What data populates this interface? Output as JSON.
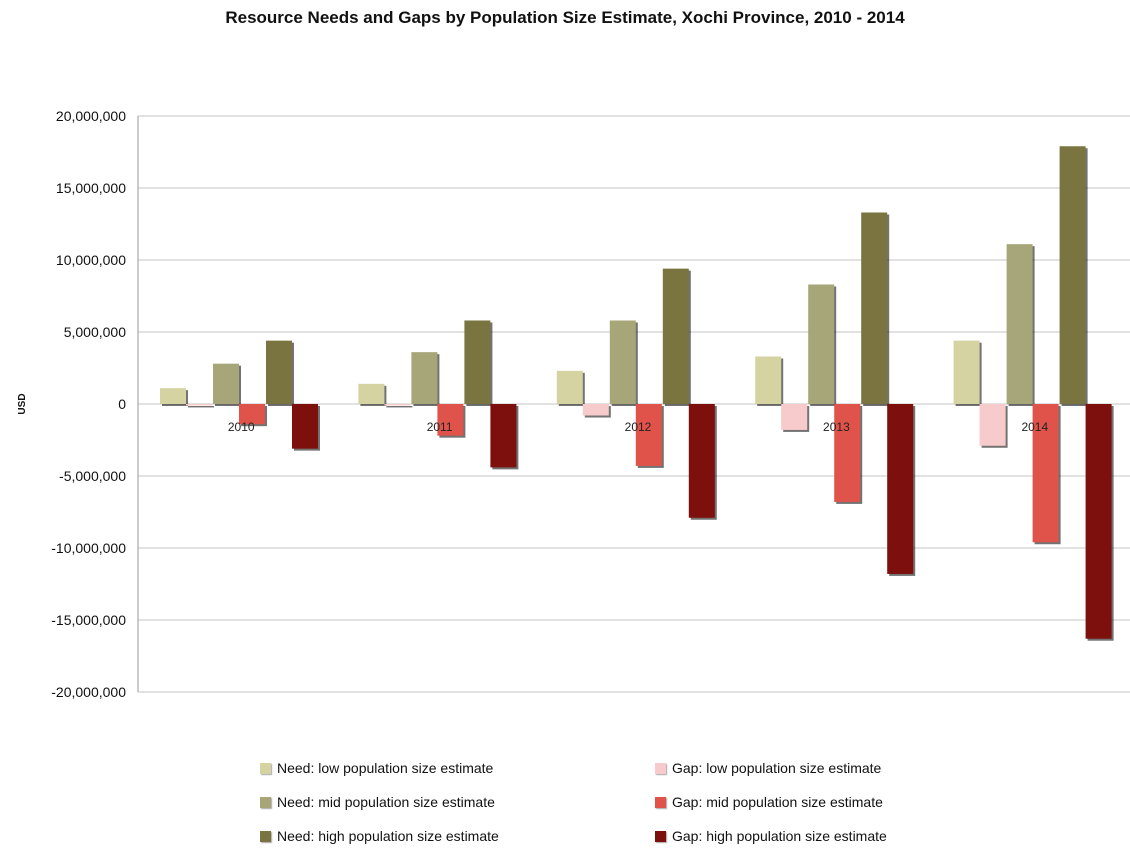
{
  "chart_data": {
    "type": "bar",
    "title": "Resource Needs and Gaps by Population Size Estimate,  Xochi Province, 2010 - 2014",
    "xlabel": "",
    "ylabel": "USD",
    "ylim": [
      -20000000,
      20000000
    ],
    "yticks": [
      "20,000,000",
      "15,000,000",
      "10,000,000",
      "5,000,000",
      "0",
      "-5,000,000",
      "-10,000,000",
      "-15,000,000",
      "-20,000,000"
    ],
    "ytick_values": [
      20000000,
      15000000,
      10000000,
      5000000,
      0,
      -5000000,
      -10000000,
      -15000000,
      -20000000
    ],
    "categories": [
      "2010",
      "2011",
      "2012",
      "2013",
      "2014"
    ],
    "grid": true,
    "legend_position": "bottom",
    "series": [
      {
        "name": "Need: low population size estimate",
        "color": "#d6d3a2",
        "values": [
          1100000,
          1400000,
          2300000,
          3300000,
          4400000
        ]
      },
      {
        "name": "Gap: low population size estimate",
        "color": "#f7cbcb",
        "values": [
          -100000,
          -100000,
          -800000,
          -1800000,
          -2900000
        ]
      },
      {
        "name": "Need: mid population size estimate",
        "color": "#a7a678",
        "values": [
          2800000,
          3600000,
          5800000,
          8300000,
          11100000
        ]
      },
      {
        "name": "Gap: mid population size estimate",
        "color": "#e0534b",
        "values": [
          -1400000,
          -2200000,
          -4300000,
          -6800000,
          -9600000
        ]
      },
      {
        "name": "Need: high population size estimate",
        "color": "#7a7540",
        "values": [
          4400000,
          5800000,
          9400000,
          13300000,
          17900000
        ]
      },
      {
        "name": "Gap: high population size estimate",
        "color": "#7d0f0c",
        "values": [
          -3100000,
          -4400000,
          -7900000,
          -11800000,
          -16300000
        ]
      }
    ]
  }
}
